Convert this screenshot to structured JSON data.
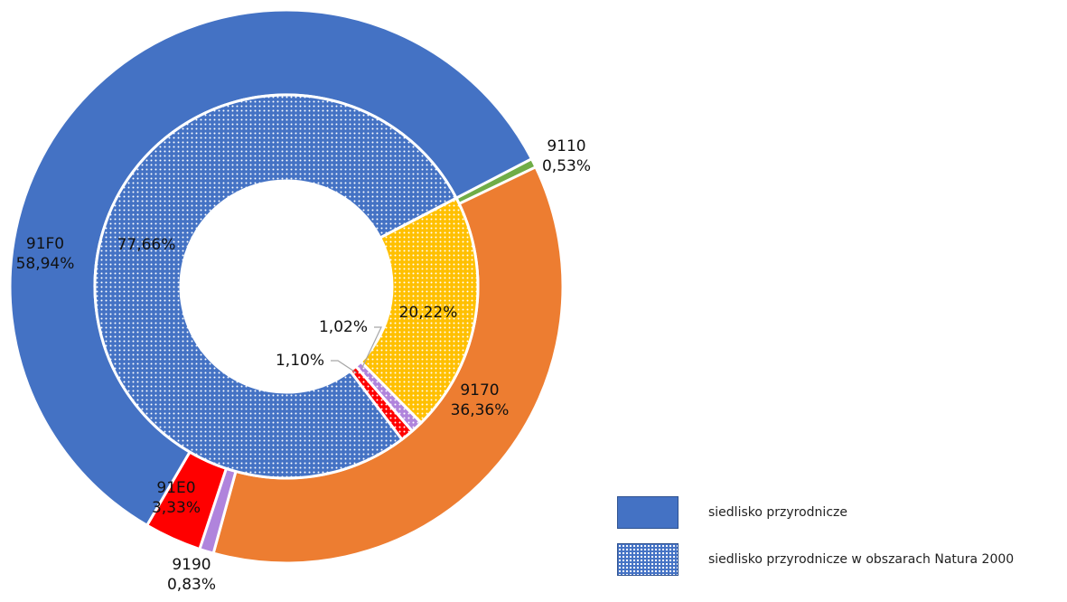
{
  "chart_data": {
    "type": "donut",
    "rings": [
      {
        "name": "siedlisko przyrodnicze",
        "pattern": "solid",
        "slices": [
          {
            "label": "9110",
            "value": 0.53,
            "value_label": "0,53%",
            "color": "#70ad47"
          },
          {
            "label": "9170",
            "value": 36.36,
            "value_label": "36,36%",
            "color": "#ed7d31"
          },
          {
            "label": "9190",
            "value": 0.83,
            "value_label": "0,83%",
            "color": "#b084dc"
          },
          {
            "label": "91E0",
            "value": 3.33,
            "value_label": "3,33%",
            "color": "#ff0000"
          },
          {
            "label": "91F0",
            "value": 58.94,
            "value_label": "58,94%",
            "color": "#4472c4"
          }
        ]
      },
      {
        "name": "siedlisko przyrodnicze w obszarach Natura 2000",
        "pattern": "dotted",
        "slices": [
          {
            "label": "9110",
            "value": 0,
            "value_label": "",
            "color": "#70ad47"
          },
          {
            "label": "9170",
            "value": 20.22,
            "value_label": "20,22%",
            "color": "#ffc000"
          },
          {
            "label": "9190",
            "value": 1.02,
            "value_label": "1,02%",
            "color": "#b084dc"
          },
          {
            "label": "91E0",
            "value": 1.1,
            "value_label": "1,10%",
            "color": "#ff0000"
          },
          {
            "label": "91F0",
            "value": 77.66,
            "value_label": "77,66%",
            "color": "#4472c4"
          }
        ]
      }
    ],
    "legend": {
      "placement": "bottom-right",
      "entries": [
        "siedlisko przyrodnicze",
        "siedlisko przyrodnicze w obszarach Natura 2000"
      ]
    }
  }
}
